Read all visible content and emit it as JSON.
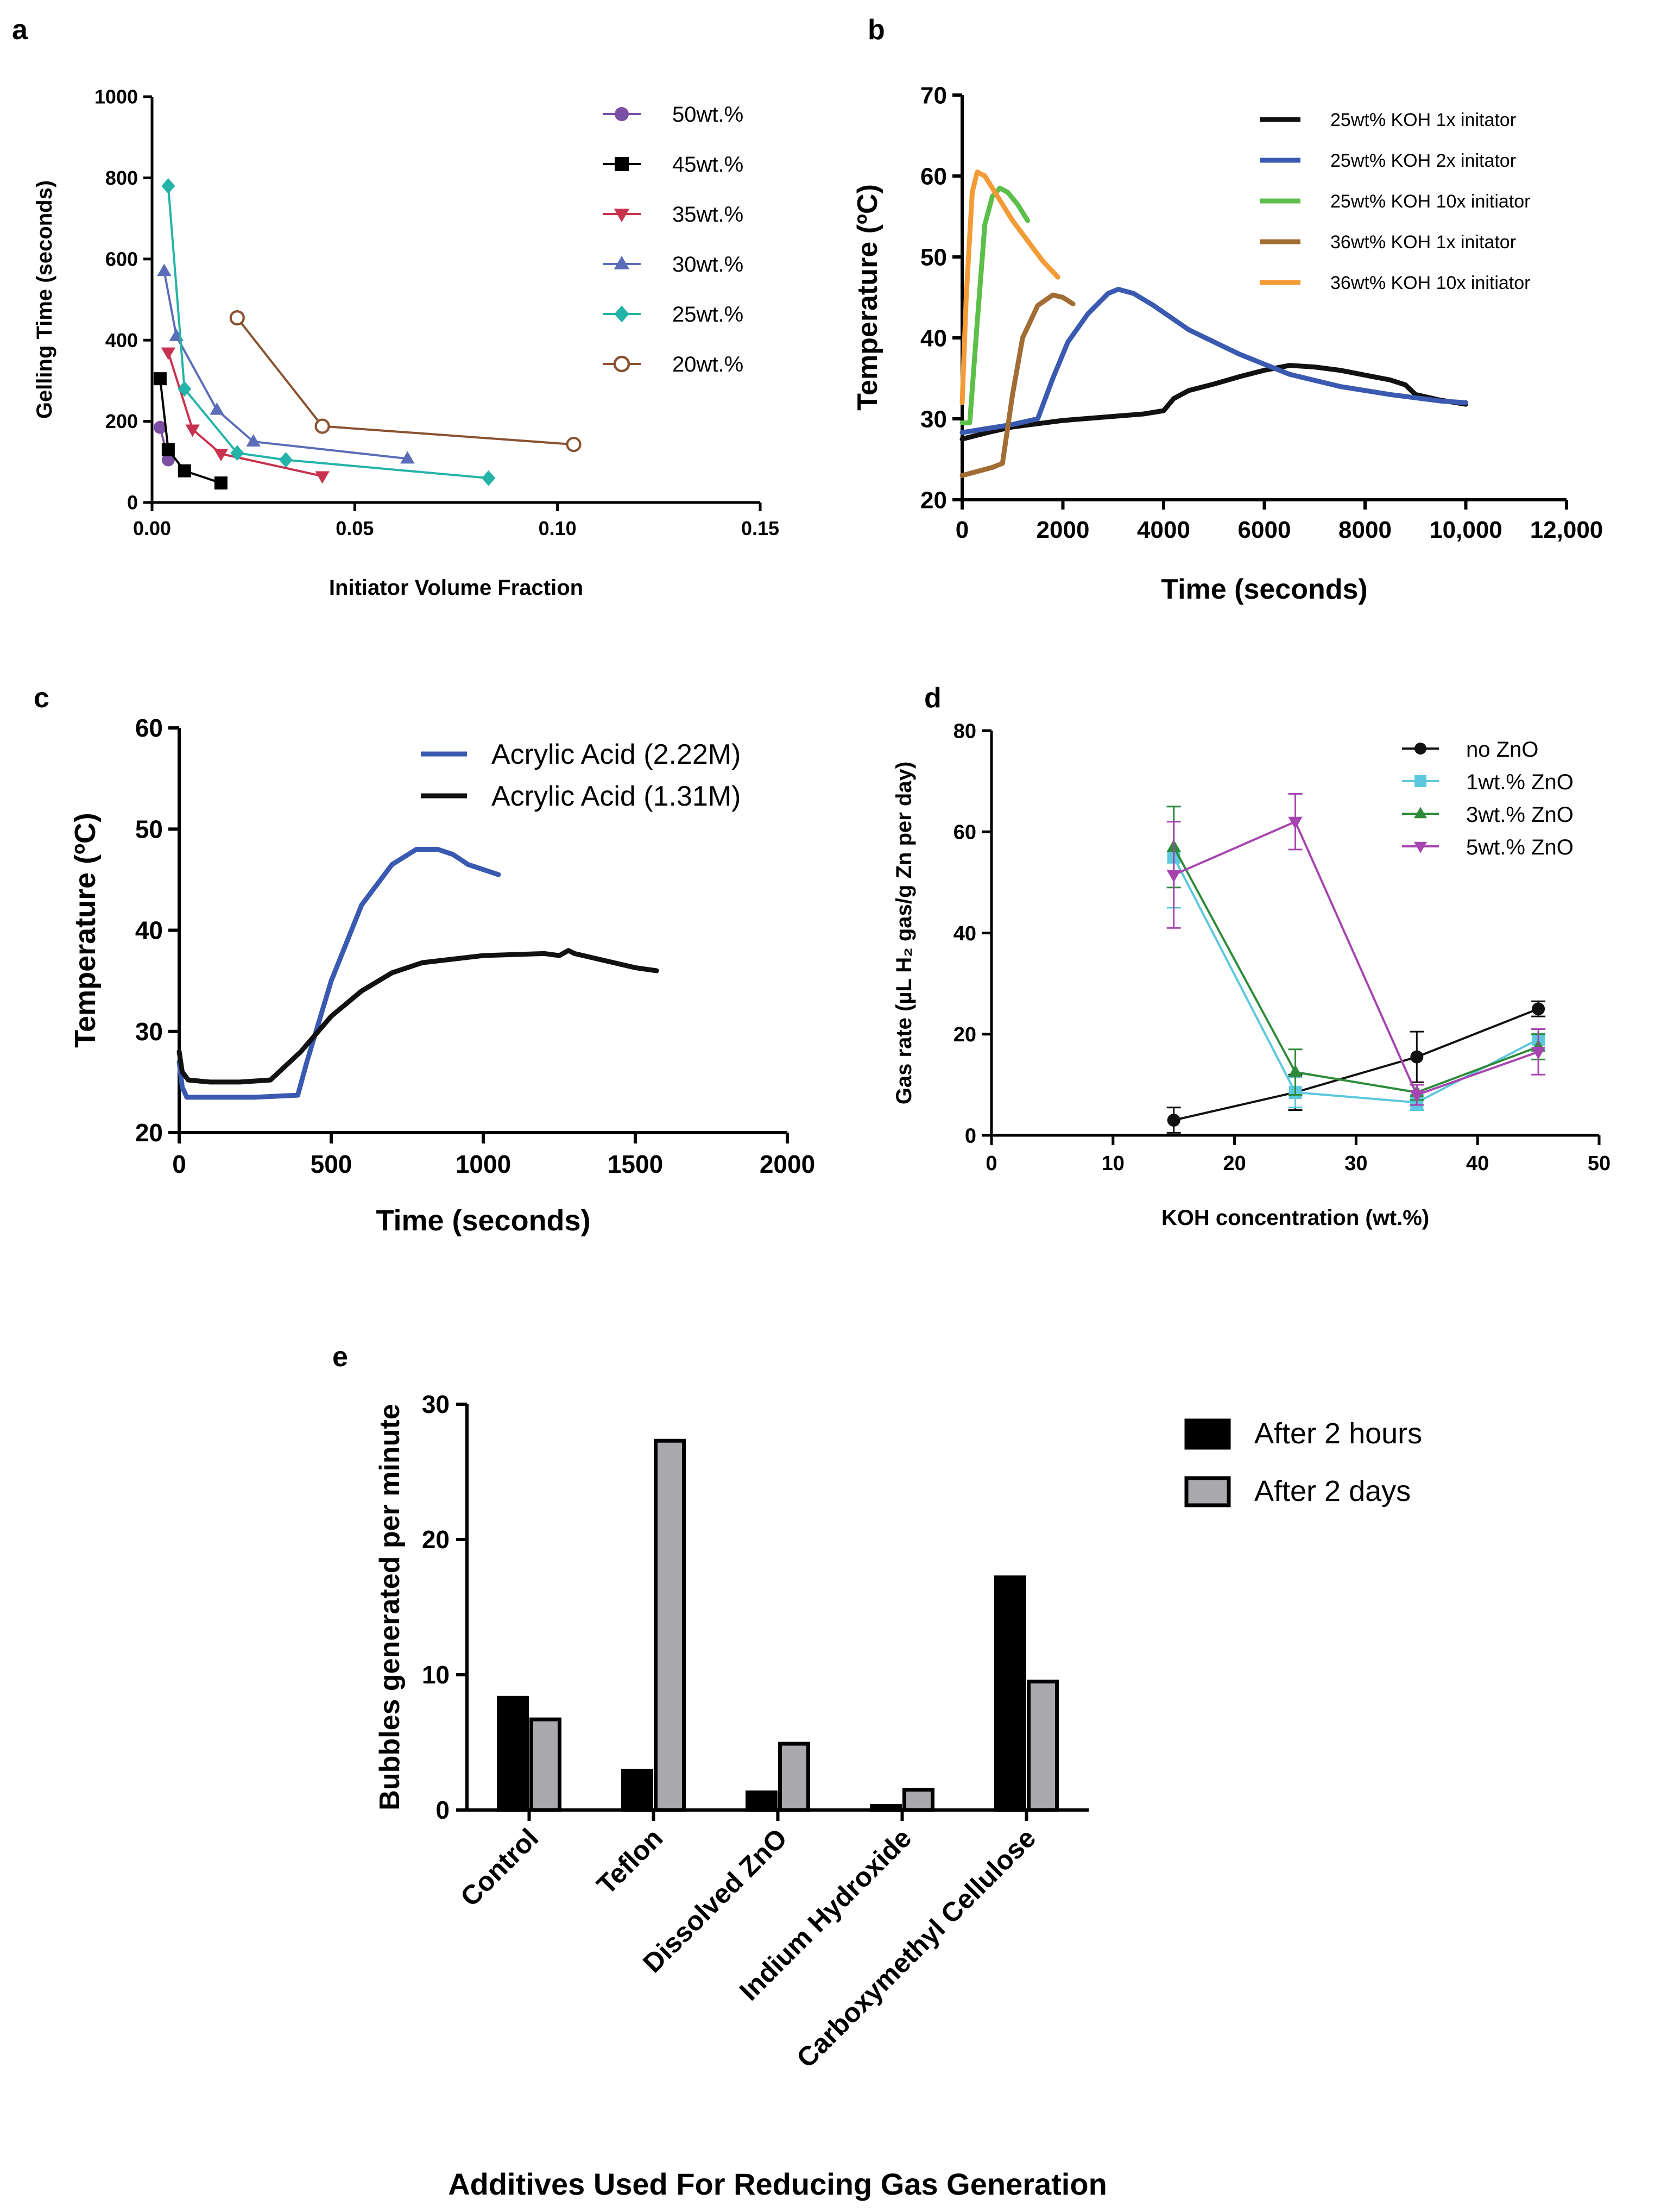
{
  "panels": {
    "a": "a",
    "b": "b",
    "c": "c",
    "d": "d",
    "e": "e"
  },
  "chart_data": [
    {
      "id": "a",
      "type": "line",
      "title": "",
      "xlabel": "Initiator Volume Fraction",
      "ylabel": "Gelling Time (seconds)",
      "xlim": [
        0,
        0.15
      ],
      "ylim": [
        0,
        1000
      ],
      "xticks": [
        0,
        0.05,
        0.1,
        0.15
      ],
      "xtick_labels": [
        "0.00",
        "0.05",
        "0.10",
        "0.15"
      ],
      "yticks": [
        0,
        200,
        400,
        600,
        800,
        1000
      ],
      "ytick_labels": [
        "0",
        "200",
        "400",
        "600",
        "800",
        "1000"
      ],
      "legend": "top-right",
      "series": [
        {
          "name": "50wt.%",
          "color": "#7b4fa3",
          "marker": "circle",
          "x": [
            0.002,
            0.004
          ],
          "y": [
            185,
            105
          ]
        },
        {
          "name": "45wt.%",
          "color": "#000000",
          "marker": "square",
          "x": [
            0.002,
            0.004,
            0.008,
            0.017
          ],
          "y": [
            305,
            130,
            78,
            48
          ]
        },
        {
          "name": "35wt.%",
          "color": "#c8324e",
          "marker": "triangle-down",
          "x": [
            0.004,
            0.01,
            0.017,
            0.042
          ],
          "y": [
            370,
            180,
            120,
            65
          ]
        },
        {
          "name": "30wt.%",
          "color": "#5b6db8",
          "marker": "triangle-up",
          "x": [
            0.003,
            0.006,
            0.016,
            0.025,
            0.063
          ],
          "y": [
            570,
            410,
            228,
            150,
            108
          ]
        },
        {
          "name": "25wt.%",
          "color": "#24b3a8",
          "marker": "diamond",
          "x": [
            0.004,
            0.008,
            0.021,
            0.033,
            0.083
          ],
          "y": [
            780,
            280,
            122,
            105,
            60
          ]
        },
        {
          "name": "20wt.%",
          "color": "#8a5230",
          "marker": "open-circle",
          "x": [
            0.021,
            0.042,
            0.104
          ],
          "y": [
            455,
            188,
            143
          ]
        }
      ]
    },
    {
      "id": "b",
      "type": "line",
      "title": "",
      "xlabel": "Time (seconds)",
      "ylabel": "Temperature (ºC)",
      "xlim": [
        0,
        12000
      ],
      "ylim": [
        20,
        70
      ],
      "xticks": [
        0,
        2000,
        4000,
        6000,
        8000,
        10000,
        12000
      ],
      "xtick_labels": [
        "0",
        "2000",
        "4000",
        "6000",
        "8000",
        "10,000",
        "12,000"
      ],
      "yticks": [
        20,
        30,
        40,
        50,
        60,
        70
      ],
      "ytick_labels": [
        "20",
        "30",
        "40",
        "50",
        "60",
        "70"
      ],
      "legend": "top-right",
      "series": [
        {
          "name": "25wt% KOH 1x initator",
          "color": "#111111",
          "x": [
            0,
            500,
            1000,
            2000,
            3000,
            3600,
            4000,
            4200,
            4500,
            5000,
            5500,
            6000,
            6500,
            7000,
            7500,
            8000,
            8500,
            8800,
            9000,
            9500,
            10000
          ],
          "y": [
            27.5,
            28.3,
            29.0,
            29.8,
            30.3,
            30.6,
            31.0,
            32.5,
            33.5,
            34.3,
            35.2,
            36.0,
            36.6,
            36.4,
            36.0,
            35.4,
            34.8,
            34.2,
            33.0,
            32.3,
            31.8
          ]
        },
        {
          "name": "25wt% KOH 2x initator",
          "color": "#3a59b0",
          "x": [
            0,
            500,
            1000,
            1500,
            1800,
            2100,
            2500,
            2900,
            3100,
            3400,
            3800,
            4500,
            5500,
            6500,
            7500,
            8500,
            9500,
            10000
          ],
          "y": [
            28.3,
            28.8,
            29.3,
            30.0,
            35.0,
            39.5,
            43.0,
            45.5,
            46.0,
            45.5,
            44.0,
            41.0,
            38.0,
            35.5,
            34.0,
            33.0,
            32.2,
            32.0
          ]
        },
        {
          "name": "25wt% KOH 10x initiator",
          "color": "#5cbf49",
          "x": [
            0,
            150,
            300,
            450,
            600,
            750,
            900,
            1100,
            1300
          ],
          "y": [
            29.5,
            29.5,
            42.0,
            54.0,
            57.5,
            58.5,
            58.0,
            56.5,
            54.5
          ]
        },
        {
          "name": "36wt% KOH 1x initator",
          "color": "#a26d34",
          "x": [
            0,
            300,
            600,
            800,
            1000,
            1200,
            1500,
            1800,
            2000,
            2200
          ],
          "y": [
            23.0,
            23.5,
            24.0,
            24.5,
            33.0,
            40.0,
            44.0,
            45.3,
            45.0,
            44.2
          ]
        },
        {
          "name": "36wt% KOH 10x initiator",
          "color": "#f39b36",
          "x": [
            0,
            80,
            200,
            300,
            450,
            700,
            1000,
            1300,
            1600,
            1900
          ],
          "y": [
            32.0,
            45.0,
            58.0,
            60.5,
            60.0,
            57.5,
            54.5,
            52.0,
            49.5,
            47.5
          ]
        }
      ]
    },
    {
      "id": "c",
      "type": "line",
      "title": "",
      "xlabel": "Time (seconds)",
      "ylabel": "Temperature (ºC)",
      "xlim": [
        0,
        2000
      ],
      "ylim": [
        20,
        60
      ],
      "xticks": [
        0,
        500,
        1000,
        1500,
        2000
      ],
      "xtick_labels": [
        "0",
        "500",
        "1000",
        "1500",
        "2000"
      ],
      "yticks": [
        20,
        30,
        40,
        50,
        60
      ],
      "ytick_labels": [
        "20",
        "30",
        "40",
        "50",
        "60"
      ],
      "legend": "top-right",
      "series": [
        {
          "name": "Acrylic Acid (2.22M)",
          "color": "#3a59b0",
          "x": [
            0,
            10,
            25,
            100,
            250,
            390,
            420,
            500,
            600,
            700,
            780,
            850,
            900,
            950,
            1000,
            1050
          ],
          "y": [
            27.0,
            24.5,
            23.5,
            23.5,
            23.5,
            23.7,
            27.0,
            35.0,
            42.5,
            46.5,
            48.0,
            48.0,
            47.5,
            46.5,
            46.0,
            45.5
          ]
        },
        {
          "name": "Acrylic Acid (1.31M)",
          "color": "#111111",
          "x": [
            0,
            10,
            30,
            100,
            200,
            300,
            400,
            500,
            600,
            700,
            800,
            1000,
            1200,
            1250,
            1280,
            1300,
            1400,
            1500,
            1570
          ],
          "y": [
            28.0,
            26.0,
            25.2,
            25.0,
            25.0,
            25.2,
            28.0,
            31.5,
            34.0,
            35.8,
            36.8,
            37.5,
            37.7,
            37.5,
            38.0,
            37.7,
            37.0,
            36.3,
            36.0
          ]
        }
      ]
    },
    {
      "id": "d",
      "type": "line",
      "title": "",
      "xlabel": "KOH concentration (wt.%)",
      "ylabel": "Gas rate (µL H₂ gas/g Zn per day)",
      "xlim": [
        0,
        50
      ],
      "ylim": [
        0,
        80
      ],
      "xticks": [
        0,
        10,
        20,
        30,
        40,
        50
      ],
      "xtick_labels": [
        "0",
        "10",
        "20",
        "30",
        "40",
        "50"
      ],
      "yticks": [
        0,
        20,
        40,
        60,
        80
      ],
      "ytick_labels": [
        "0",
        "20",
        "40",
        "60",
        "80"
      ],
      "legend": "top-right",
      "series": [
        {
          "name": "no ZnO",
          "color": "#111111",
          "marker": "circle",
          "x": [
            15,
            25,
            35,
            45
          ],
          "y": [
            3,
            8.5,
            15.5,
            25
          ],
          "err": [
            2.5,
            3.5,
            5,
            1.5
          ]
        },
        {
          "name": "1wt.% ZnO",
          "color": "#5bc8dd",
          "marker": "square",
          "x": [
            15,
            25,
            35,
            45
          ],
          "y": [
            55,
            8.5,
            6.5,
            19
          ],
          "err": [
            10,
            3,
            1.5,
            2
          ]
        },
        {
          "name": "3wt.% ZnO",
          "color": "#2e8b3a",
          "marker": "triangle-up",
          "x": [
            15,
            25,
            35,
            45
          ],
          "y": [
            57,
            12.5,
            8.5,
            17.5
          ],
          "err": [
            8,
            4.5,
            1.5,
            2.5
          ]
        },
        {
          "name": "5wt.% ZnO",
          "color": "#a745b0",
          "marker": "triangle-down",
          "x": [
            15,
            25,
            35,
            45
          ],
          "y": [
            51.5,
            62,
            8,
            16.5
          ],
          "err": [
            10.5,
            5.5,
            2,
            4.5
          ]
        }
      ]
    },
    {
      "id": "e",
      "type": "bar",
      "title": "",
      "xlabel": "Additives Used For Reducing Gas Generation",
      "ylabel": "Bubbles generated per minute",
      "ylim": [
        0,
        30
      ],
      "yticks": [
        0,
        10,
        20,
        30
      ],
      "ytick_labels": [
        "0",
        "10",
        "20",
        "30"
      ],
      "legend": "top-right",
      "categories": [
        "Control",
        "Teflon",
        "Dissolved ZnO",
        "Indium Hydroxide",
        "Carboxymethyl Cellulose"
      ],
      "series": [
        {
          "name": "After 2 hours",
          "color": "#000000",
          "values": [
            8.3,
            2.9,
            1.3,
            0.3,
            17.2
          ]
        },
        {
          "name": "After 2 days",
          "color": "#a9a9ad",
          "values": [
            6.7,
            27.3,
            4.9,
            1.5,
            9.5
          ]
        }
      ]
    }
  ]
}
